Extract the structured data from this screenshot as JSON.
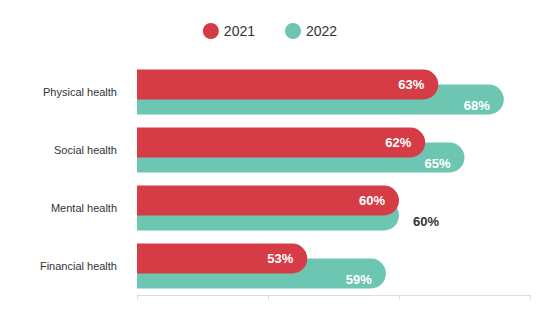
{
  "chart_data": {
    "type": "bar",
    "orientation": "horizontal",
    "categories": [
      "Physical health",
      "Social health",
      "Mental health",
      "Financial health"
    ],
    "series": [
      {
        "name": "2021",
        "color": "#d63c46",
        "values": [
          63,
          62,
          60,
          53
        ],
        "value_labels": [
          "63%",
          "62%",
          "60%",
          "53%"
        ]
      },
      {
        "name": "2022",
        "color": "#6dc6b2",
        "values": [
          68,
          65,
          60,
          59
        ],
        "value_labels": [
          "68%",
          "65%",
          "60%",
          "59%"
        ]
      }
    ],
    "xlim": [
      40,
      70
    ],
    "xticks": [
      40,
      50,
      60,
      70
    ],
    "legend": "top",
    "data_labels": true,
    "tick_labels": "y",
    "grid": false
  }
}
